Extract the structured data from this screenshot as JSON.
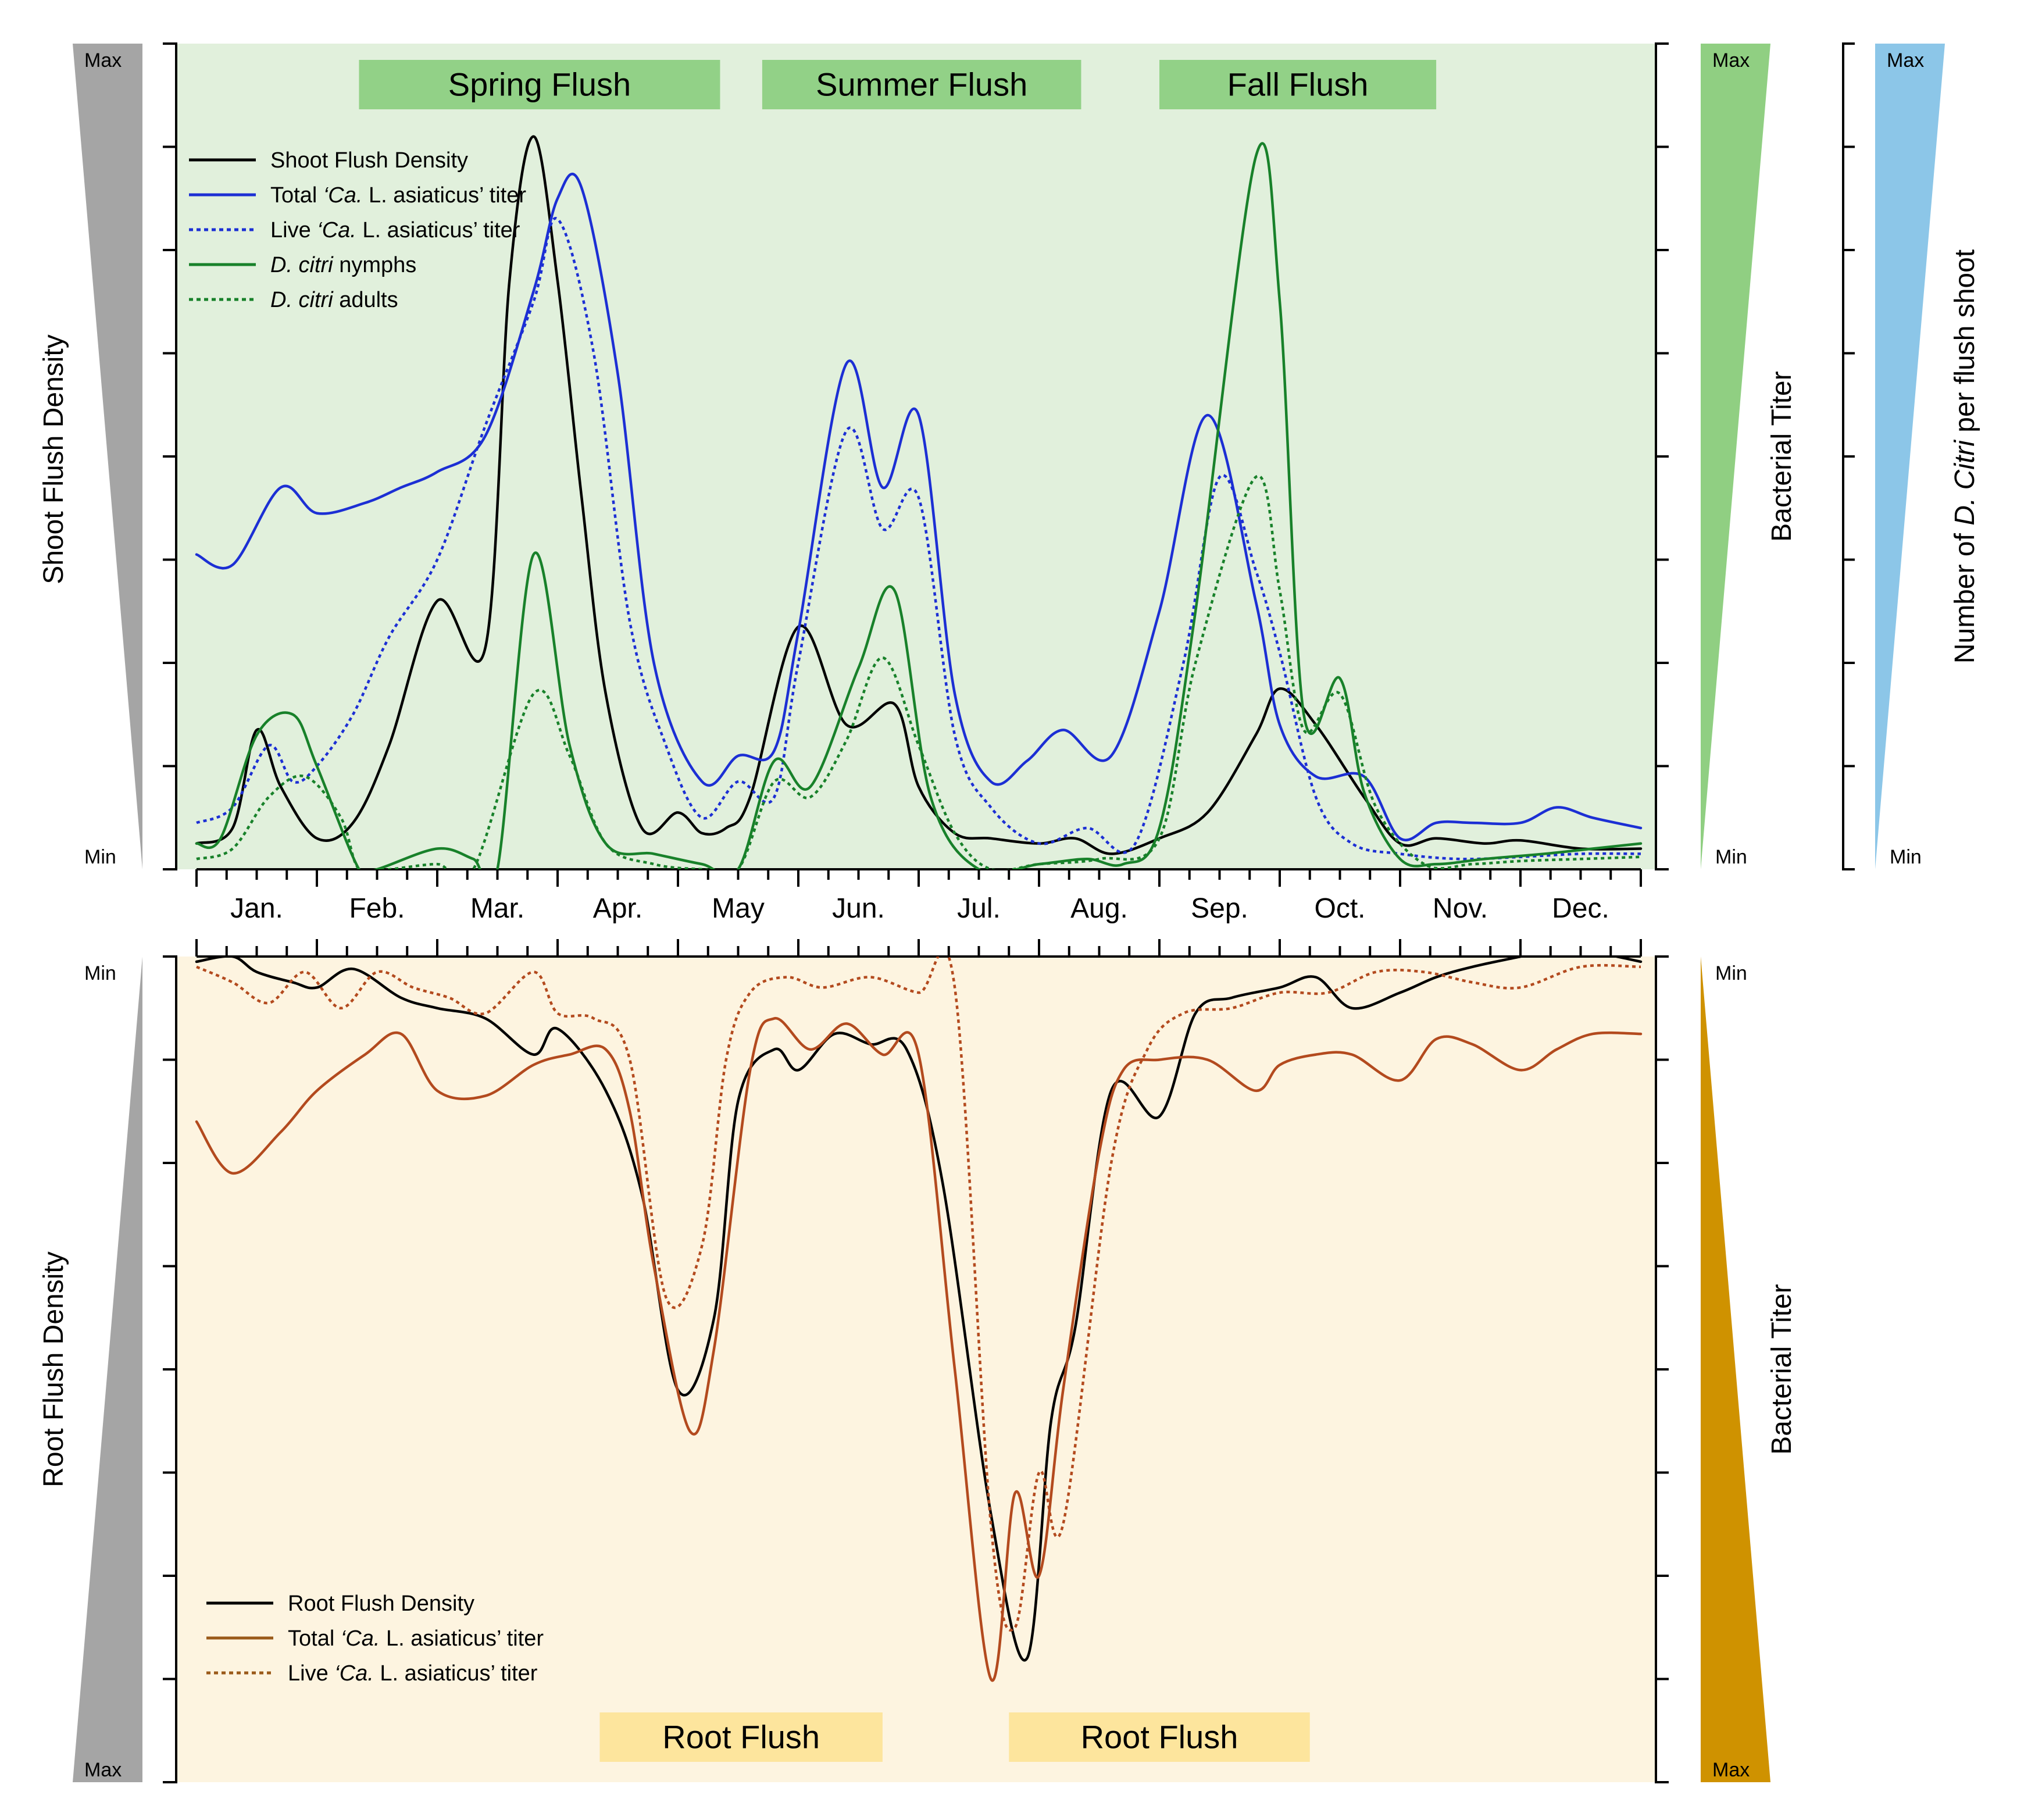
{
  "chart_data": [
    {
      "type": "line",
      "title": "",
      "xlabel": "",
      "ylabel": "Shoot Flush Density",
      "ylabel_right_1": "Bacterial Titer",
      "ylabel_right_2": {
        "prefix": "Number of ",
        "italic": "D. Citri",
        "suffix": " per flush shoot"
      },
      "ylim": [
        0,
        8
      ],
      "y_scale_labels": {
        "max": "Max",
        "min": "Min"
      },
      "months": [
        "Jan.",
        "Feb.",
        "Mar.",
        "Apr.",
        "May",
        "Jun.",
        "Jul.",
        "Aug.",
        "Sep.",
        "Oct.",
        "Nov.",
        "Dec."
      ],
      "x_unit": "month (0 = start of Jan, 12 = end of Dec)",
      "flush_periods": [
        {
          "label": "Spring Flush",
          "start": 1.35,
          "end": 4.35
        },
        {
          "label": "Summer Flush",
          "start": 4.7,
          "end": 7.35
        },
        {
          "label": "Fall Flush",
          "start": 8.0,
          "end": 10.3
        }
      ],
      "series": [
        {
          "name": "Shoot Flush Density",
          "color": "#000000",
          "dash": false,
          "x": [
            0,
            0.3,
            0.5,
            0.7,
            1.0,
            1.3,
            1.6,
            2.0,
            2.4,
            2.6,
            2.8,
            3.0,
            3.2,
            3.4,
            3.7,
            4.0,
            4.2,
            4.4,
            4.6,
            5.0,
            5.4,
            5.8,
            6.0,
            6.3,
            6.6,
            7.0,
            7.3,
            7.6,
            8.0,
            8.4,
            8.8,
            9.0,
            9.3,
            9.7,
            10.0,
            10.3,
            10.7,
            11.0,
            11.5,
            12.0
          ],
          "values": [
            0.25,
            0.4,
            1.35,
            0.8,
            0.3,
            0.45,
            1.2,
            2.6,
            2.15,
            5.7,
            7.1,
            5.7,
            3.6,
            1.7,
            0.4,
            0.55,
            0.35,
            0.4,
            0.7,
            2.35,
            1.4,
            1.6,
            0.8,
            0.35,
            0.3,
            0.25,
            0.3,
            0.15,
            0.3,
            0.55,
            1.3,
            1.75,
            1.4,
            0.7,
            0.25,
            0.3,
            0.25,
            0.28,
            0.2,
            0.2
          ]
        },
        {
          "name": "Total 'Ca. L. asiaticus' titer",
          "color": "#1c2fd4",
          "dash": false,
          "x": [
            0,
            0.3,
            0.7,
            1.0,
            1.4,
            1.7,
            2.0,
            2.4,
            2.8,
            3.0,
            3.2,
            3.5,
            3.8,
            4.2,
            4.5,
            4.8,
            5.0,
            5.4,
            5.7,
            6.0,
            6.3,
            6.6,
            6.9,
            7.2,
            7.6,
            8.0,
            8.4,
            8.8,
            9.0,
            9.3,
            9.7,
            10.0,
            10.3,
            10.6,
            11.0,
            11.3,
            11.6,
            12.0
          ],
          "values": [
            3.05,
            2.95,
            3.7,
            3.45,
            3.55,
            3.7,
            3.85,
            4.2,
            5.6,
            6.5,
            6.6,
            4.8,
            2.0,
            0.85,
            1.1,
            1.15,
            2.3,
            4.9,
            3.7,
            4.4,
            1.7,
            0.85,
            1.05,
            1.35,
            1.1,
            2.5,
            4.4,
            2.6,
            1.4,
            0.9,
            0.9,
            0.3,
            0.45,
            0.45,
            0.45,
            0.6,
            0.5,
            0.4
          ]
        },
        {
          "name": "Live 'Ca. L. asiaticus' titer",
          "color": "#1c2fd4",
          "dash": true,
          "x": [
            0,
            0.3,
            0.6,
            0.8,
            1.0,
            1.3,
            1.6,
            2.0,
            2.4,
            2.8,
            3.0,
            3.3,
            3.6,
            3.9,
            4.2,
            4.5,
            4.8,
            5.0,
            5.4,
            5.7,
            6.0,
            6.3,
            6.6,
            7.0,
            7.4,
            7.8,
            8.2,
            8.5,
            8.8,
            9.0,
            9.3,
            9.6,
            10.0,
            10.5,
            11.0,
            11.5,
            12.0
          ],
          "values": [
            0.45,
            0.6,
            1.2,
            0.85,
            1.0,
            1.5,
            2.25,
            3.0,
            4.3,
            5.5,
            6.3,
            5.0,
            2.4,
            1.2,
            0.5,
            0.85,
            0.7,
            2.0,
            4.25,
            3.3,
            3.6,
            1.3,
            0.6,
            0.25,
            0.4,
            0.25,
            2.0,
            3.8,
            2.9,
            2.1,
            0.7,
            0.25,
            0.15,
            0.1,
            0.12,
            0.15,
            0.15
          ]
        },
        {
          "name": "D. citri nymphs",
          "color": "#18812a",
          "dash": false,
          "x": [
            0,
            0.2,
            0.5,
            0.8,
            1.0,
            1.35,
            1.5,
            2.0,
            2.3,
            2.5,
            2.8,
            3.1,
            3.4,
            3.8,
            4.2,
            4.5,
            4.8,
            5.1,
            5.5,
            5.8,
            6.1,
            6.5,
            7.0,
            7.4,
            7.7,
            8.0,
            8.3,
            8.8,
            9.0,
            9.2,
            9.5,
            9.7,
            10.0,
            10.3,
            10.7,
            11.2,
            11.6,
            12.0
          ],
          "values": [
            0.25,
            0.3,
            1.3,
            1.5,
            1.0,
            0.0,
            0.0,
            0.2,
            0.1,
            0.0,
            3.05,
            1.2,
            0.25,
            0.15,
            0.05,
            0.0,
            1.05,
            0.8,
            1.95,
            2.7,
            0.7,
            0.0,
            0.05,
            0.1,
            0.05,
            0.4,
            2.5,
            6.9,
            5.5,
            1.5,
            1.85,
            0.75,
            0.1,
            0.05,
            0.1,
            0.15,
            0.2,
            0.25
          ]
        },
        {
          "name": "D. citri adults",
          "color": "#18812a",
          "dash": true,
          "x": [
            0,
            0.3,
            0.6,
            0.9,
            1.2,
            1.35,
            1.6,
            2.0,
            2.3,
            2.8,
            3.1,
            3.4,
            3.8,
            4.2,
            4.5,
            4.8,
            5.1,
            5.4,
            5.7,
            6.0,
            6.3,
            6.6,
            7.0,
            7.5,
            8.0,
            8.3,
            8.8,
            9.0,
            9.2,
            9.5,
            9.8,
            10.2,
            10.6,
            11.0,
            11.5,
            12.0
          ],
          "values": [
            0.1,
            0.2,
            0.7,
            0.9,
            0.5,
            0.0,
            0.0,
            0.05,
            0.0,
            1.7,
            1.1,
            0.25,
            0.05,
            0.0,
            0.0,
            0.85,
            0.7,
            1.25,
            2.05,
            1.2,
            0.35,
            0.0,
            0.05,
            0.1,
            0.3,
            2.0,
            3.8,
            2.7,
            1.35,
            1.7,
            0.6,
            0.05,
            0.05,
            0.08,
            0.1,
            0.12
          ]
        }
      ],
      "legend": [
        {
          "label_parts": [
            {
              "t": "Shoot Flush Density",
              "i": false
            }
          ],
          "color": "#000000",
          "dash": false
        },
        {
          "label_parts": [
            {
              "t": "Total ",
              "i": false
            },
            {
              "t": "‘Ca.",
              "i": true
            },
            {
              "t": " L. asiaticus’ titer",
              "i": false
            }
          ],
          "color": "#1c2fd4",
          "dash": false
        },
        {
          "label_parts": [
            {
              "t": "Live ",
              "i": false
            },
            {
              "t": "‘Ca.",
              "i": true
            },
            {
              "t": " L. asiaticus’ titer",
              "i": false
            }
          ],
          "color": "#1c2fd4",
          "dash": true
        },
        {
          "label_parts": [
            {
              "t": "D. citri",
              "i": true
            },
            {
              "t": " nymphs",
              "i": false
            }
          ],
          "color": "#18812a",
          "dash": false
        },
        {
          "label_parts": [
            {
              "t": "D. citri",
              "i": true
            },
            {
              "t": " adults",
              "i": false
            }
          ],
          "color": "#18812a",
          "dash": true
        }
      ],
      "legend_position": "top-left"
    },
    {
      "type": "line",
      "title": "",
      "xlabel": "",
      "ylabel": "Root Flush Density",
      "ylabel_right_1": "Bacterial Titer",
      "ylim": [
        0,
        8
      ],
      "y_inverted": true,
      "y_scale_labels": {
        "max": "Max",
        "min": "Min"
      },
      "x_unit": "month (0 = start of Jan, 12 = end of Dec)",
      "flush_periods": [
        {
          "label": "Root Flush",
          "start": 3.35,
          "end": 5.7
        },
        {
          "label": "Root Flush",
          "start": 6.75,
          "end": 9.25
        }
      ],
      "series": [
        {
          "name": "Root Flush Density",
          "color": "#000000",
          "dash": false,
          "x": [
            0,
            0.3,
            0.5,
            0.8,
            1.0,
            1.3,
            1.7,
            2.0,
            2.4,
            2.8,
            3.0,
            3.4,
            3.7,
            4.0,
            4.3,
            4.5,
            4.8,
            5.0,
            5.3,
            5.6,
            5.9,
            6.2,
            6.6,
            6.9,
            7.1,
            7.3,
            7.6,
            8.0,
            8.3,
            8.6,
            9.0,
            9.3,
            9.6,
            10.0,
            10.3,
            10.6,
            11.0,
            11.4,
            11.8,
            12.0
          ],
          "values": [
            0.05,
            0.0,
            0.15,
            0.25,
            0.3,
            0.12,
            0.4,
            0.5,
            0.6,
            0.95,
            0.7,
            1.3,
            2.3,
            4.2,
            3.5,
            1.4,
            0.9,
            1.1,
            0.75,
            0.85,
            0.9,
            2.2,
            5.4,
            6.8,
            4.5,
            3.6,
            1.3,
            1.55,
            0.55,
            0.4,
            0.3,
            0.2,
            0.5,
            0.35,
            0.2,
            0.1,
            0.0,
            -0.1,
            0.0,
            0.05
          ]
        },
        {
          "name": "Total 'Ca. L. asiaticus' titer",
          "color": "#b34a1e",
          "dash": false,
          "x": [
            0,
            0.3,
            0.7,
            1.0,
            1.4,
            1.7,
            2.0,
            2.4,
            2.8,
            3.1,
            3.4,
            3.6,
            3.8,
            4.1,
            4.3,
            4.6,
            4.8,
            5.1,
            5.4,
            5.7,
            6.0,
            6.3,
            6.6,
            6.8,
            7.0,
            7.2,
            7.5,
            7.7,
            8.0,
            8.4,
            8.8,
            9.0,
            9.3,
            9.6,
            10.0,
            10.3,
            10.6,
            11.0,
            11.3,
            11.6,
            12.0
          ],
          "values": [
            1.6,
            2.1,
            1.7,
            1.3,
            0.95,
            0.75,
            1.3,
            1.35,
            1.05,
            0.95,
            0.9,
            1.5,
            3.0,
            4.6,
            3.8,
            1.1,
            0.6,
            0.9,
            0.65,
            0.95,
            0.95,
            4.0,
            7.0,
            5.2,
            6.0,
            4.2,
            1.9,
            1.1,
            1.0,
            1.0,
            1.3,
            1.05,
            0.95,
            0.95,
            1.2,
            0.8,
            0.85,
            1.1,
            0.9,
            0.75,
            0.75
          ]
        },
        {
          "name": "Live 'Ca. L. asiaticus' titer",
          "color": "#b34a1e",
          "dash": true,
          "x": [
            0,
            0.3,
            0.6,
            0.9,
            1.2,
            1.5,
            1.8,
            2.1,
            2.4,
            2.8,
            3.0,
            3.3,
            3.6,
            3.9,
            4.2,
            4.4,
            4.6,
            4.9,
            5.2,
            5.6,
            6.0,
            6.3,
            6.6,
            6.8,
            7.0,
            7.2,
            7.6,
            7.9,
            8.2,
            8.6,
            9.0,
            9.4,
            9.8,
            10.2,
            10.6,
            11.0,
            11.5,
            12.0
          ],
          "values": [
            0.1,
            0.25,
            0.45,
            0.15,
            0.5,
            0.15,
            0.3,
            0.4,
            0.55,
            0.15,
            0.55,
            0.6,
            1.0,
            3.3,
            2.8,
            1.0,
            0.35,
            0.2,
            0.3,
            0.2,
            0.35,
            0.3,
            5.5,
            6.5,
            5.0,
            5.5,
            2.0,
            0.9,
            0.55,
            0.5,
            0.35,
            0.35,
            0.15,
            0.15,
            0.25,
            0.3,
            0.1,
            0.1
          ]
        }
      ],
      "legend": [
        {
          "label_parts": [
            {
              "t": "Root Flush Density",
              "i": false
            }
          ],
          "color": "#000000",
          "dash": false
        },
        {
          "label_parts": [
            {
              "t": "Total ",
              "i": false
            },
            {
              "t": "‘Ca.",
              "i": true
            },
            {
              "t": " L. asiaticus’ titer",
              "i": false
            }
          ],
          "color": "#9a5a1a",
          "dash": false
        },
        {
          "label_parts": [
            {
              "t": "Live ",
              "i": false
            },
            {
              "t": "‘Ca.",
              "i": true
            },
            {
              "t": " L. asiaticus’ titer",
              "i": false
            }
          ],
          "color": "#9a5a1a",
          "dash": true
        }
      ],
      "legend_position": "bottom-left"
    }
  ],
  "colors": {
    "top_bg": "#e1f0dc",
    "bottom_bg": "#fdf4e0",
    "flush_label_bg_top": "#92d187",
    "flush_label_bg_bottom": "#fde59d",
    "wedge_grey": "#a5a5a5",
    "wedge_green": "#90cf82",
    "wedge_blue": "#8cc6e8",
    "wedge_gold": "#cf9200"
  }
}
